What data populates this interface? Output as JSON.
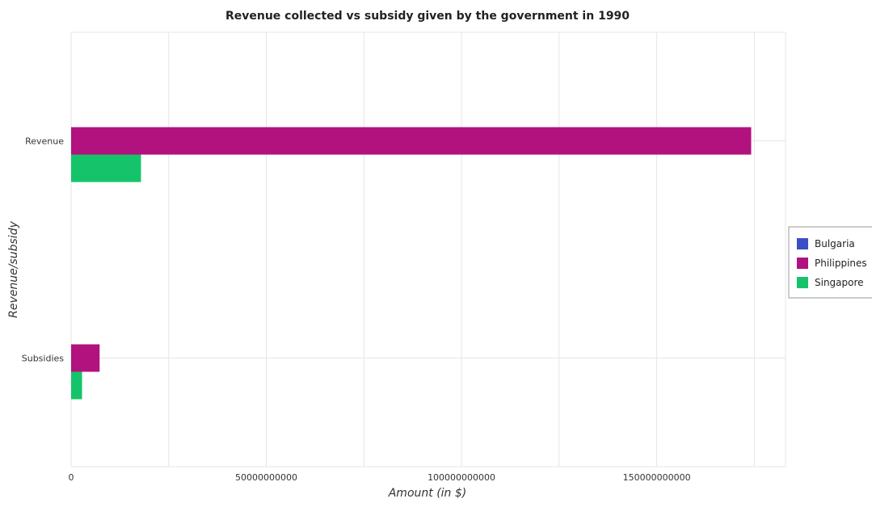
{
  "chart_data": {
    "type": "bar",
    "orientation": "horizontal",
    "title": "Revenue collected vs subsidy given by the government in 1990",
    "xlabel": "Amount (in $)",
    "ylabel": "Revenue/subsidy",
    "categories": [
      "Revenue",
      "Subsidies"
    ],
    "series": [
      {
        "name": "Bulgaria",
        "color": "#3d4fc4",
        "values": [
          0,
          0
        ]
      },
      {
        "name": "Philippines",
        "color": "#b1127e",
        "values": [
          174200000000,
          7300000000
        ]
      },
      {
        "name": "Singapore",
        "color": "#15c46a",
        "values": [
          17900000000,
          2800000000
        ]
      }
    ],
    "xlim": [
      0,
      183000000000
    ],
    "xticks": [
      0,
      50000000000,
      100000000000,
      150000000000
    ],
    "xtick_labels": [
      "0",
      "50000000000",
      "100000000000",
      "150000000000"
    ],
    "grid": true,
    "legend_position": "right"
  }
}
